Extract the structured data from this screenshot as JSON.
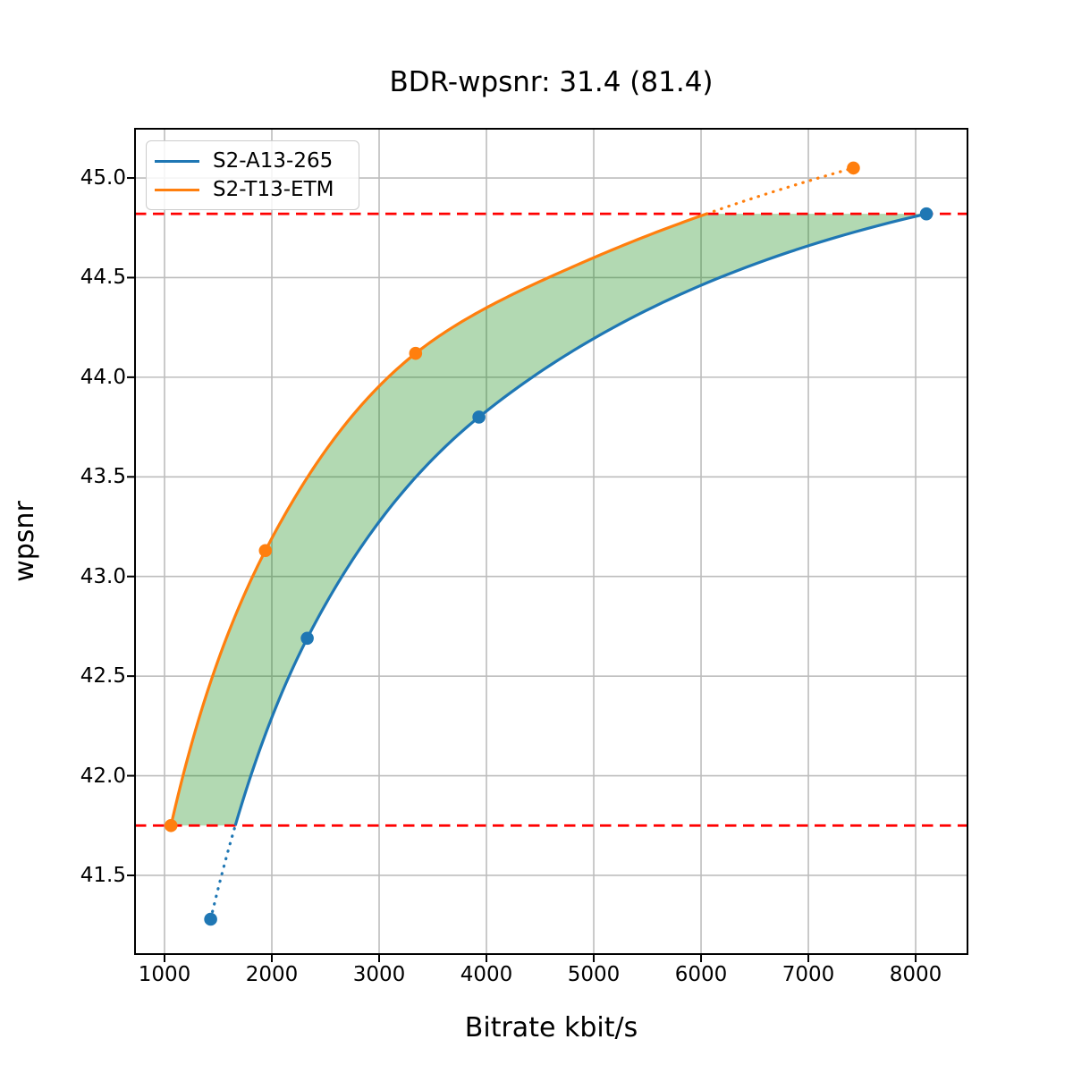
{
  "figure": {
    "title": "BDR-wpsnr: 31.4 (81.4)"
  },
  "chart_data": {
    "type": "line",
    "title": "BDR-wpsnr: 31.4 (81.4)",
    "xlabel": "Bitrate kbit/s",
    "ylabel": "wpsnr",
    "xlim": [
      725,
      8483
    ],
    "ylim": [
      41.105,
      45.247
    ],
    "xticks": [
      1000,
      2000,
      3000,
      4000,
      5000,
      6000,
      7000,
      8000
    ],
    "xtick_labels": [
      "1000",
      "2000",
      "3000",
      "4000",
      "5000",
      "6000",
      "7000",
      "8000"
    ],
    "yticks": [
      41.5,
      42.0,
      42.5,
      43.0,
      43.5,
      44.0,
      44.5,
      45.0
    ],
    "ytick_labels": [
      "41.5",
      "42.0",
      "42.5",
      "43.0",
      "43.5",
      "44.0",
      "44.5",
      "45.0"
    ],
    "grid": true,
    "grid_color": "#bdbdbd",
    "legend_position": "upper left",
    "series": [
      {
        "name": "S2-A13-265",
        "color": "#1f77b4",
        "x": [
          1430,
          2330,
          3930,
          8100
        ],
        "y": [
          41.28,
          42.69,
          43.8,
          44.82
        ],
        "curve_shape_extra": []
      },
      {
        "name": "S2-T13-ETM",
        "color": "#ff7f0e",
        "x": [
          1060,
          1940,
          3340,
          7420
        ],
        "y": [
          41.75,
          43.13,
          44.12,
          45.05
        ],
        "curve_shape_extra": [
          [
            5000,
            44.6
          ]
        ]
      }
    ],
    "hlines": {
      "values": [
        44.82,
        41.75
      ],
      "color": "#ff0000",
      "style": "dashed"
    },
    "overlap_band": [
      41.75,
      44.82
    ],
    "fill_between": {
      "color": "#008000",
      "opacity": 0.3
    },
    "outside_band_linestyle": "dotted"
  }
}
